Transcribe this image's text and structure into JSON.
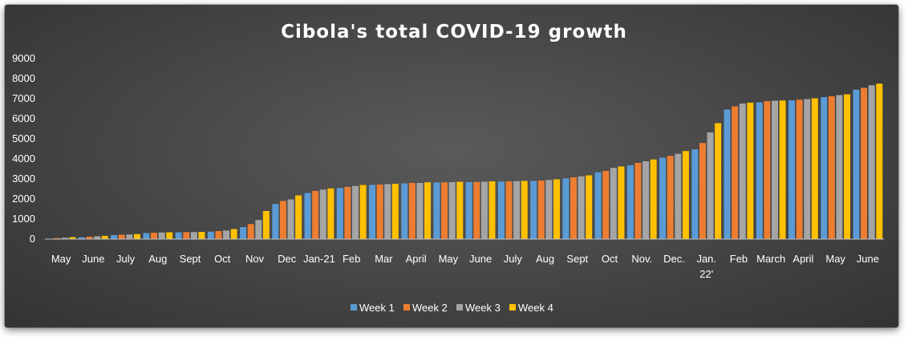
{
  "chart_data": {
    "type": "bar",
    "title": "Cibola's total COVID-19 growth",
    "xlabel": "",
    "ylabel": "",
    "ylim": [
      0,
      9000
    ],
    "yticks": [
      0,
      1000,
      2000,
      3000,
      4000,
      5000,
      6000,
      7000,
      8000,
      9000
    ],
    "grid": false,
    "legend_position": "bottom",
    "categories": [
      "May",
      "June",
      "July",
      "Aug",
      "Sept",
      "Oct",
      "Nov",
      "Dec",
      "Jan-21",
      "Feb",
      "Mar",
      "April",
      "May",
      "June",
      "July",
      "Aug",
      "Sept",
      "Oct",
      "Nov.",
      "Dec.",
      "Jan.\n22'",
      "Feb",
      "March",
      "April",
      "May",
      "June"
    ],
    "series": [
      {
        "name": "Week 1",
        "color": "#5b9bd5",
        "values": [
          20,
          90,
          200,
          300,
          340,
          370,
          600,
          1750,
          2300,
          2550,
          2700,
          2780,
          2820,
          2840,
          2870,
          2900,
          3030,
          3330,
          3680,
          4060,
          4470,
          6460,
          6820,
          6920,
          7080,
          7450
        ]
      },
      {
        "name": "Week 2",
        "color": "#ed7d31",
        "values": [
          50,
          120,
          220,
          320,
          345,
          400,
          750,
          1900,
          2400,
          2600,
          2720,
          2800,
          2830,
          2850,
          2880,
          2920,
          3080,
          3400,
          3800,
          4150,
          4790,
          6620,
          6880,
          6950,
          7120,
          7540
        ]
      },
      {
        "name": "Week 3",
        "color": "#a5a5a5",
        "values": [
          70,
          140,
          230,
          330,
          350,
          430,
          950,
          1980,
          2470,
          2650,
          2740,
          2800,
          2840,
          2860,
          2890,
          2950,
          3130,
          3550,
          3880,
          4250,
          5320,
          6760,
          6900,
          6980,
          7180,
          7670
        ]
      },
      {
        "name": "Week 4",
        "color": "#ffc000",
        "values": [
          100,
          160,
          250,
          340,
          360,
          500,
          1400,
          2180,
          2530,
          2700,
          2760,
          2830,
          2860,
          2880,
          2900,
          2980,
          3180,
          3620,
          3970,
          4390,
          5780,
          6800,
          6910,
          7020,
          7220,
          7750
        ]
      }
    ]
  }
}
